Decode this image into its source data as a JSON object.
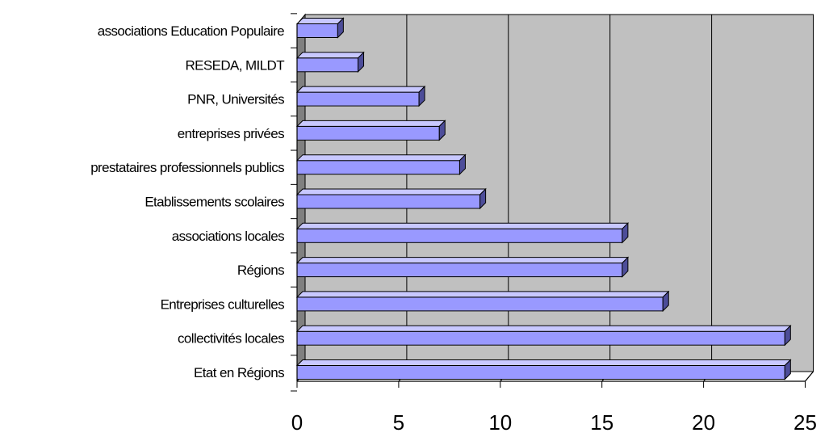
{
  "chart_data": {
    "type": "bar",
    "orientation": "horizontal",
    "style": "3d",
    "categories": [
      "associations Education Populaire",
      "RESEDA, MILDT",
      "PNR, Universités",
      "entreprises privées",
      "prestataires professionnels publics",
      "Etablissements scolaires",
      "associations locales",
      "Régions",
      "Entreprises culturelles",
      "collectivités locales",
      "Etat en Régions"
    ],
    "values": [
      2,
      3,
      6,
      7,
      8,
      9,
      16,
      16,
      18,
      24,
      24
    ],
    "xlim": [
      0,
      25
    ],
    "xticks": [
      "0",
      "5",
      "10",
      "15",
      "20",
      "25"
    ],
    "grid": true,
    "legend": "none",
    "colors": {
      "bar_front": "#9999ff",
      "bar_top": "#c8c8ff",
      "bar_side": "#4d4d99",
      "plot_wall": "#c0c0c0",
      "floor": "#808080",
      "gridline": "#000000"
    }
  }
}
